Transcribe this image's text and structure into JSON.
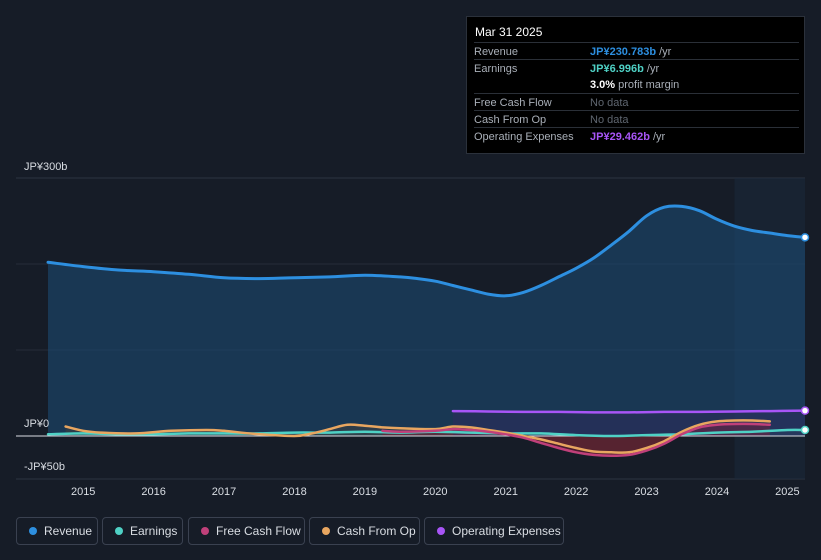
{
  "tooltip": {
    "date": "Mar 31 2025",
    "rows": [
      {
        "label": "Revenue",
        "value": "JP¥230.783b",
        "suffix": " /yr",
        "color": "#2d8fe0"
      },
      {
        "label": "Earnings",
        "value": "JP¥6.996b",
        "suffix": " /yr",
        "color": "#4fd1c5"
      },
      {
        "label": "",
        "value": "3.0%",
        "suffix": " profit margin",
        "color": "#ffffff"
      },
      {
        "label": "Free Cash Flow",
        "value": "No data",
        "suffix": "",
        "color": "#5f6670"
      },
      {
        "label": "Cash From Op",
        "value": "No data",
        "suffix": "",
        "color": "#5f6670"
      },
      {
        "label": "Operating Expenses",
        "value": "JP¥29.462b",
        "suffix": " /yr",
        "color": "#a855f7"
      }
    ]
  },
  "legend": [
    {
      "label": "Revenue",
      "color": "#2d8fe0"
    },
    {
      "label": "Earnings",
      "color": "#4fd1c5"
    },
    {
      "label": "Free Cash Flow",
      "color": "#c0407a"
    },
    {
      "label": "Cash From Op",
      "color": "#e8a660"
    },
    {
      "label": "Operating Expenses",
      "color": "#a855f7"
    }
  ],
  "chart_data": {
    "type": "area",
    "ylabel_top": "JP¥300b",
    "ylabel_zero": "JP¥0",
    "ylabel_bottom": "-JP¥50b",
    "ylim": [
      -50,
      300
    ],
    "xlim": [
      2014.5,
      2025.25
    ],
    "x_ticks": [
      "2015",
      "2016",
      "2017",
      "2018",
      "2019",
      "2020",
      "2021",
      "2022",
      "2023",
      "2024",
      "2025"
    ],
    "highlight_start": 2024.25,
    "series": [
      {
        "name": "Revenue",
        "color": "#2d8fe0",
        "x": [
          2014.5,
          2015.0,
          2015.5,
          2016.0,
          2016.5,
          2017.0,
          2017.5,
          2018.0,
          2018.5,
          2019.0,
          2019.5,
          2019.75,
          2020.0,
          2020.25,
          2020.5,
          2020.75,
          2021.0,
          2021.25,
          2021.5,
          2021.75,
          2022.0,
          2022.25,
          2022.5,
          2022.75,
          2023.0,
          2023.25,
          2023.5,
          2023.75,
          2024.0,
          2024.25,
          2024.5,
          2024.75,
          2025.0,
          2025.25
        ],
        "values": [
          202,
          197,
          193,
          191,
          188,
          184,
          183,
          184,
          185,
          187,
          185,
          183,
          180,
          175,
          170,
          165,
          163,
          167,
          175,
          185,
          195,
          207,
          222,
          238,
          256,
          266,
          267,
          262,
          252,
          244,
          239,
          236,
          233,
          231
        ]
      },
      {
        "name": "Earnings",
        "color": "#4fd1c5",
        "x": [
          2014.5,
          2015.0,
          2015.5,
          2016.0,
          2016.5,
          2017.0,
          2017.5,
          2018.0,
          2018.5,
          2019.0,
          2019.5,
          2020.0,
          2020.5,
          2021.0,
          2021.5,
          2022.0,
          2022.5,
          2023.0,
          2023.5,
          2024.0,
          2024.5,
          2025.0,
          2025.25
        ],
        "values": [
          2,
          3,
          2,
          2,
          3,
          3,
          3,
          4,
          4,
          5,
          4,
          5,
          4,
          3,
          3,
          1,
          0,
          1,
          2,
          4,
          5,
          7,
          7
        ]
      },
      {
        "name": "Free Cash Flow",
        "color": "#c0407a",
        "x": [
          2019.25,
          2019.5,
          2020.0,
          2020.25,
          2020.5,
          2020.75,
          2021.0,
          2021.25,
          2021.5,
          2021.75,
          2022.0,
          2022.25,
          2022.5,
          2022.75,
          2023.0,
          2023.25,
          2023.5,
          2023.75,
          2024.0,
          2024.25,
          2024.5,
          2024.75
        ],
        "values": [
          6,
          5,
          6,
          8,
          7,
          5,
          2,
          -2,
          -8,
          -14,
          -19,
          -22,
          -23,
          -22,
          -17,
          -9,
          2,
          10,
          13,
          14,
          14,
          13
        ]
      },
      {
        "name": "Cash From Op",
        "color": "#e8a660",
        "x": [
          2014.75,
          2015.0,
          2015.25,
          2015.75,
          2016.25,
          2016.75,
          2017.0,
          2017.5,
          2018.0,
          2018.25,
          2018.5,
          2018.75,
          2019.0,
          2019.25,
          2019.5,
          2020.0,
          2020.25,
          2020.5,
          2020.75,
          2021.0,
          2021.25,
          2021.5,
          2021.75,
          2022.0,
          2022.25,
          2022.5,
          2022.75,
          2023.0,
          2023.25,
          2023.5,
          2023.75,
          2024.0,
          2024.25,
          2024.5,
          2024.75
        ],
        "values": [
          11,
          6,
          4,
          3,
          6,
          7,
          6,
          2,
          0,
          3,
          8,
          13,
          12,
          10,
          9,
          8,
          11,
          10,
          7,
          4,
          0,
          -4,
          -9,
          -14,
          -18,
          -19,
          -19,
          -14,
          -6,
          5,
          13,
          17,
          18,
          18,
          17
        ]
      },
      {
        "name": "Operating Expenses",
        "color": "#a855f7",
        "x": [
          2020.25,
          2020.75,
          2021.25,
          2021.75,
          2022.25,
          2022.75,
          2023.25,
          2023.75,
          2024.25,
          2024.75,
          2025.25
        ],
        "values": [
          29,
          28.5,
          28,
          28,
          27.5,
          27.5,
          28,
          28,
          28.5,
          29,
          29.5
        ]
      }
    ]
  }
}
